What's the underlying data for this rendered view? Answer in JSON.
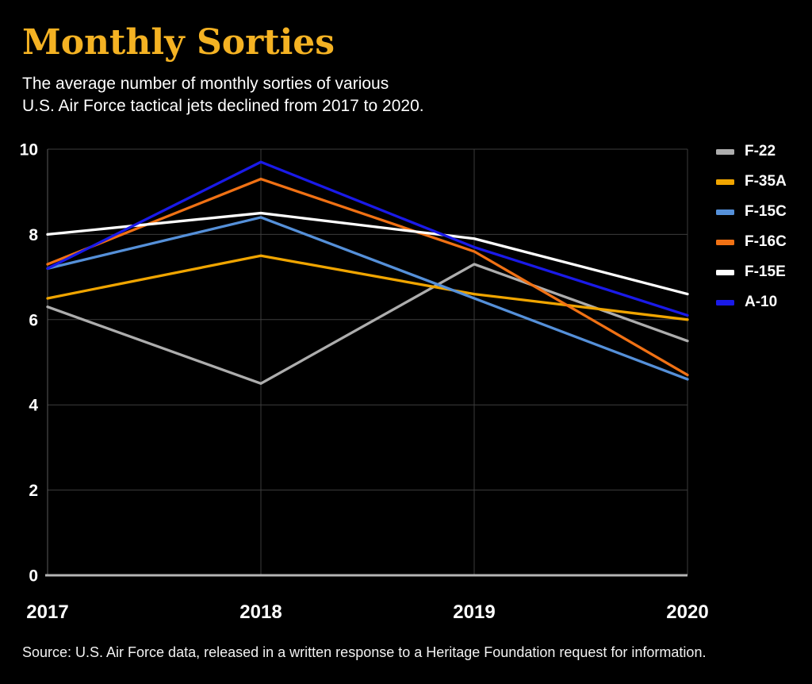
{
  "header": {
    "title": "Monthly Sorties",
    "title_color": "#F4B223",
    "subtitle_line1": "The average number of monthly sorties of various",
    "subtitle_line2": "U.S. Air Force tactical jets declined from 2017 to 2020."
  },
  "chart_data": {
    "type": "line",
    "title": "Monthly Sorties",
    "xlabel": "",
    "ylabel": "",
    "categories": [
      "2017",
      "2018",
      "2019",
      "2020"
    ],
    "series": [
      {
        "name": "F-22",
        "color": "#ADADAD",
        "values": [
          6.3,
          4.5,
          7.3,
          5.5
        ]
      },
      {
        "name": "F-35A",
        "color": "#F0A500",
        "values": [
          6.5,
          7.5,
          6.6,
          6.0
        ]
      },
      {
        "name": "F-15C",
        "color": "#5590D9",
        "values": [
          7.2,
          8.4,
          6.5,
          4.6
        ]
      },
      {
        "name": "F-16C",
        "color": "#F07114",
        "values": [
          7.3,
          9.3,
          7.6,
          4.7
        ]
      },
      {
        "name": "F-15E",
        "color": "#FFFFFF",
        "values": [
          8.0,
          8.5,
          7.9,
          6.6
        ]
      },
      {
        "name": "A-10",
        "color": "#1A1AE8",
        "values": [
          7.2,
          9.7,
          7.7,
          6.1
        ]
      }
    ],
    "ylim": [
      0,
      10
    ],
    "yticks": [
      0,
      2,
      4,
      6,
      8,
      10
    ],
    "grid": true,
    "legend_position": "right"
  },
  "colors": {
    "background": "#000000",
    "grid": "#3D3D3D",
    "axis_left": "#5A5A5A",
    "axis_bottom": "#B5B5B5",
    "tick_text": "#FFFFFF"
  },
  "footer": {
    "source": "Source: U.S. Air Force data, released in a written response to a Heritage Foundation request for information."
  }
}
